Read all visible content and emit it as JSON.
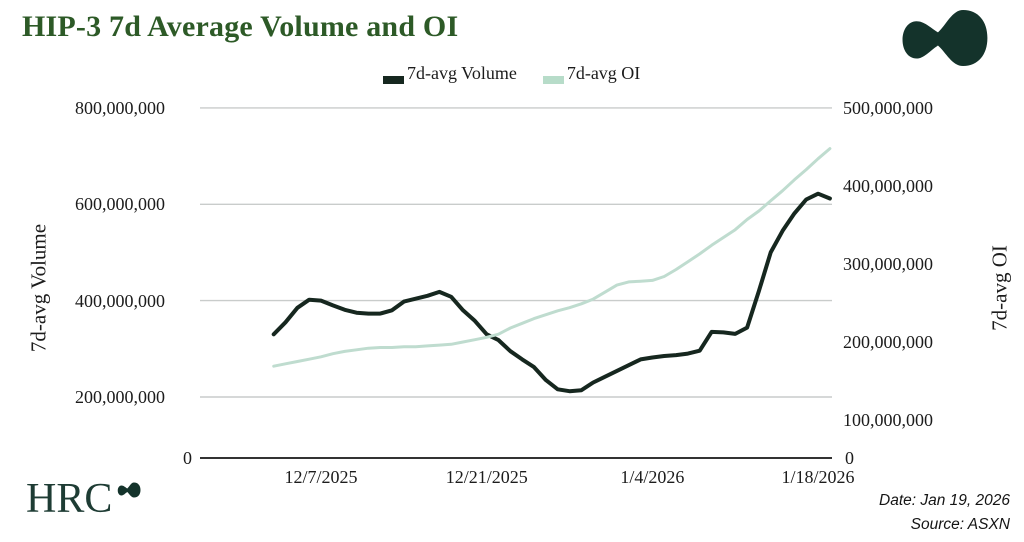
{
  "header": {
    "title": "HIP-3 7d Average Volume and OI"
  },
  "brand": {
    "name": "HRC"
  },
  "icons": {
    "logo_blob": "hourglass-blob-mark",
    "logo_color": "#14332B"
  },
  "legend": {
    "items": [
      {
        "label": "7d-avg Volume",
        "color": "#16271F"
      },
      {
        "label": "7d-avg OI",
        "color": "#B7DCC9"
      }
    ]
  },
  "footer": {
    "date_note": "Date: Jan 19, 2026",
    "source_note": "Source: ASXN"
  },
  "chart_data": {
    "type": "line",
    "title": "HIP-3 7d Average Volume and OI",
    "grid": true,
    "legend_position": "top",
    "gridline_color": "#C9CCCB",
    "axis_line_color": "#141414",
    "x": [
      "12/3/2025",
      "12/4/2025",
      "12/5/2025",
      "12/6/2025",
      "12/7/2025",
      "12/8/2025",
      "12/9/2025",
      "12/10/2025",
      "12/11/2025",
      "12/12/2025",
      "12/13/2025",
      "12/14/2025",
      "12/15/2025",
      "12/16/2025",
      "12/17/2025",
      "12/18/2025",
      "12/19/2025",
      "12/20/2025",
      "12/21/2025",
      "12/22/2025",
      "12/23/2025",
      "12/24/2025",
      "12/25/2025",
      "12/26/2025",
      "12/27/2025",
      "12/28/2025",
      "12/29/2025",
      "12/30/2025",
      "12/31/2025",
      "1/1/2026",
      "1/2/2026",
      "1/3/2026",
      "1/4/2026",
      "1/5/2026",
      "1/6/2026",
      "1/7/2026",
      "1/8/2026",
      "1/9/2026",
      "1/10/2026",
      "1/11/2026",
      "1/12/2026",
      "1/13/2026",
      "1/14/2026",
      "1/15/2026",
      "1/16/2026",
      "1/17/2026",
      "1/18/2026",
      "1/19/2026"
    ],
    "series": [
      {
        "name": "7d-avg Volume",
        "axis": "left",
        "color": "#16271F",
        "values": [
          330000000,
          355000000,
          385000000,
          402000000,
          400000000,
          390000000,
          381000000,
          375000000,
          373000000,
          373000000,
          380000000,
          398000000,
          404000000,
          410000000,
          418000000,
          408000000,
          380000000,
          358000000,
          330000000,
          318000000,
          295000000,
          278000000,
          262000000,
          235000000,
          216000000,
          212000000,
          214000000,
          230000000,
          242000000,
          254000000,
          266000000,
          278000000,
          282000000,
          285000000,
          287000000,
          290000000,
          296000000,
          335000000,
          334000000,
          331000000,
          344000000,
          420000000,
          500000000,
          545000000,
          581000000,
          610000000,
          622000000,
          612000000
        ]
      },
      {
        "name": "7d-avg OI",
        "axis": "right",
        "color": "#BFDCCF",
        "values": [
          169000000,
          172000000,
          175000000,
          178000000,
          181000000,
          185000000,
          188000000,
          190000000,
          192000000,
          193000000,
          193000000,
          194000000,
          194000000,
          195000000,
          196000000,
          197000000,
          200000000,
          203000000,
          206000000,
          210000000,
          218000000,
          224000000,
          230000000,
          235000000,
          240000000,
          244000000,
          249000000,
          255000000,
          264000000,
          273000000,
          277000000,
          278000000,
          279000000,
          284000000,
          293000000,
          303000000,
          313000000,
          324000000,
          334000000,
          344000000,
          357000000,
          368000000,
          381000000,
          394000000,
          408000000,
          421000000,
          435000000,
          448000000
        ]
      }
    ],
    "left_axis": {
      "label": "7d-avg Volume",
      "range": [
        0,
        800000000
      ],
      "ticks": [
        "800,000,000",
        "600,000,000",
        "400,000,000",
        "200,000,000",
        "0"
      ],
      "tick_values": [
        800000000,
        600000000,
        400000000,
        200000000,
        0
      ]
    },
    "right_axis": {
      "label": "7d-avg OI",
      "range": [
        0,
        500000000
      ],
      "ticks": [
        "500,000,000",
        "400,000,000",
        "300,000,000",
        "200,000,000",
        "100,000,000",
        "0"
      ],
      "tick_values": [
        500000000,
        400000000,
        300000000,
        200000000,
        100000000,
        0
      ]
    },
    "x_axis": {
      "ticks": [
        {
          "label": "12/7/2025",
          "index": 4
        },
        {
          "label": "12/21/2025",
          "index": 18
        },
        {
          "label": "1/4/2026",
          "index": 32
        },
        {
          "label": "1/18/2026",
          "index": 46
        }
      ]
    }
  }
}
